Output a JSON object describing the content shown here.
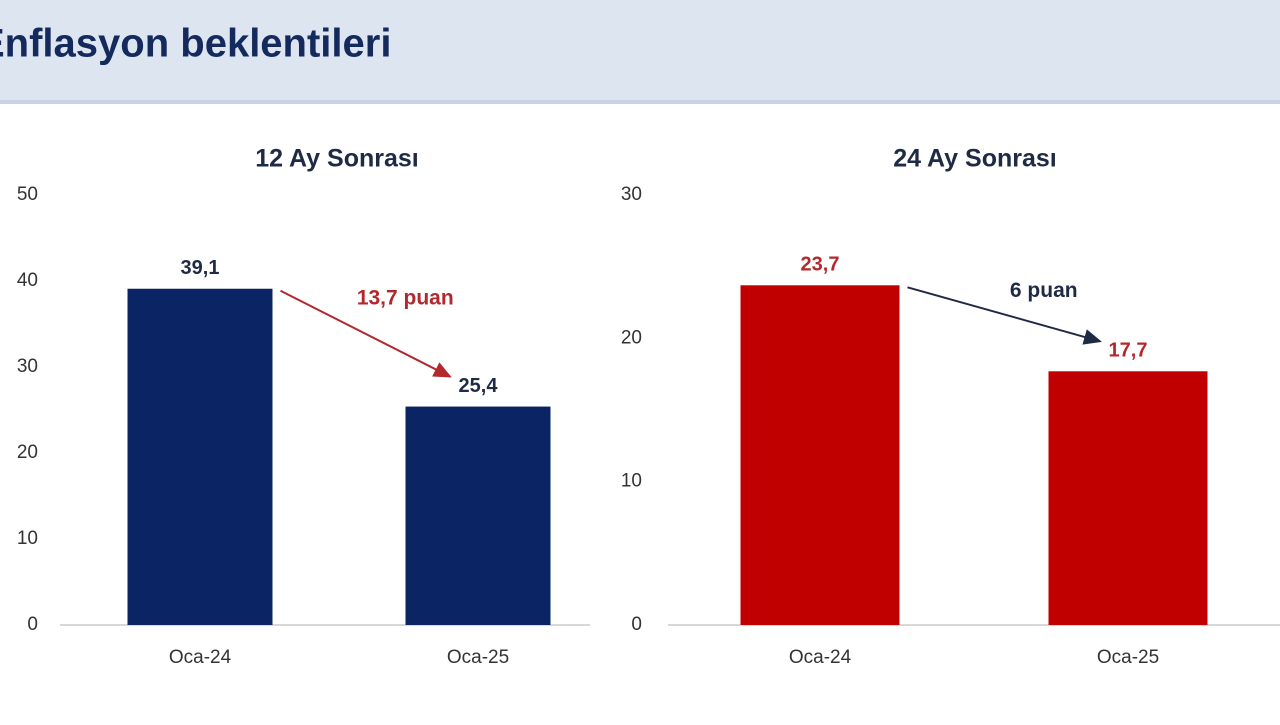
{
  "header": {
    "title": "Enflasyon beklentileri"
  },
  "chart_data": [
    {
      "type": "bar",
      "title": "12 Ay Sonrası",
      "categories": [
        "Oca-24",
        "Oca-25"
      ],
      "values": [
        39.1,
        25.4
      ],
      "value_labels": [
        "39,1",
        "25,4"
      ],
      "color": "#0b2463",
      "label_color": "#1f2a44",
      "ylim": [
        0,
        50
      ],
      "yticks": [
        0,
        10,
        20,
        30,
        40,
        50
      ],
      "annotation": "13,7 puan",
      "annotation_color": "#b3282d"
    },
    {
      "type": "bar",
      "title": "24 Ay Sonrası",
      "categories": [
        "Oca-24",
        "Oca-25"
      ],
      "values": [
        23.7,
        17.7
      ],
      "value_labels": [
        "23,7",
        "17,7"
      ],
      "color": "#c00000",
      "label_color": "#b3282d",
      "ylim": [
        0,
        30
      ],
      "yticks": [
        0,
        10,
        20,
        30
      ],
      "annotation": "6 puan",
      "annotation_color": "#1f2a44"
    }
  ]
}
